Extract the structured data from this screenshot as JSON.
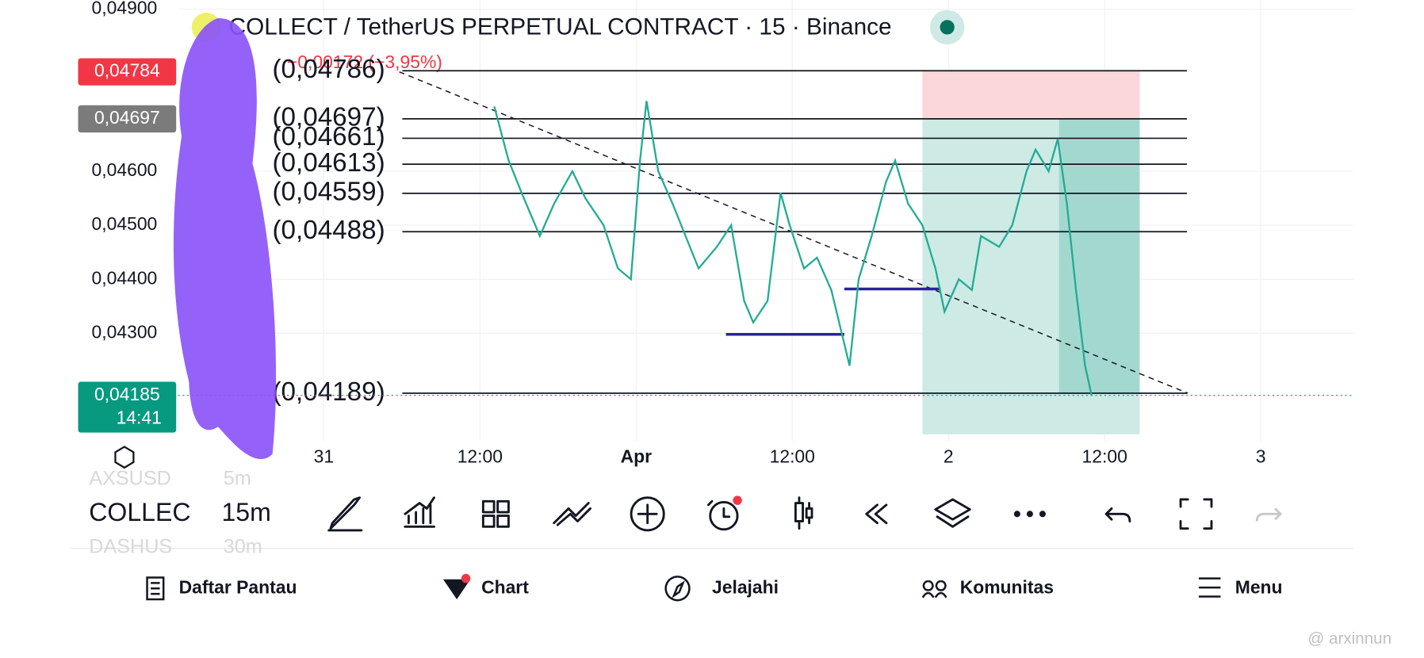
{
  "chart_data": {
    "type": "line",
    "title": "COLLECT / TetherUS PERPETUAL CONTRACT · 15 · Binance",
    "subtitle": "−0,00172 (−3,95%)",
    "x": [
      13.1,
      14.2,
      15.2,
      16.6,
      17.7,
      19.1,
      20.1,
      21.5,
      22.6,
      23.6,
      24.3,
      24.8,
      25.7,
      26.8,
      27.8,
      28.8,
      30.2,
      31.3,
      32.3,
      33.0,
      34.1,
      35.1,
      35.8,
      36.9,
      37.9,
      39.0,
      40.0,
      40.4,
      41.1,
      42.1,
      43.2,
      43.9,
      44.9,
      46.0,
      47.0,
      47.7,
      48.8,
      49.8,
      50.5,
      51.9,
      52.9,
      54.0,
      54.7,
      55.7,
      56.4,
      57.1,
      57.8,
      58.5,
      59.0
    ],
    "values": [
      0.0472,
      0.0462,
      0.0456,
      0.0448,
      0.0454,
      0.046,
      0.0455,
      0.045,
      0.0442,
      0.044,
      0.0462,
      0.0473,
      0.046,
      0.0454,
      0.0448,
      0.0442,
      0.0446,
      0.045,
      0.0436,
      0.0432,
      0.0436,
      0.0456,
      0.045,
      0.0442,
      0.0444,
      0.0438,
      0.0428,
      0.0424,
      0.044,
      0.0448,
      0.0458,
      0.0462,
      0.0454,
      0.045,
      0.0442,
      0.0434,
      0.044,
      0.0438,
      0.0448,
      0.0446,
      0.045,
      0.046,
      0.0464,
      0.046,
      0.0466,
      0.0454,
      0.0438,
      0.0424,
      0.04185
    ],
    "color": "#22ab94",
    "xlim": [
      -19.3,
      79.1
    ],
    "ylim": [
      0.0411,
      0.04917
    ],
    "xticks": [
      {
        "value": 0,
        "label": "31"
      },
      {
        "value": 12,
        "label": "12:00"
      },
      {
        "value": 24,
        "label": "Apr"
      },
      {
        "value": 36,
        "label": "12:00"
      },
      {
        "value": 48,
        "label": "2"
      },
      {
        "value": 60,
        "label": "12:00"
      },
      {
        "value": 72,
        "label": "3"
      }
    ],
    "yticks": [
      {
        "value": 0.049,
        "label": "0,04900"
      },
      {
        "value": 0.046,
        "label": "0,04600"
      },
      {
        "value": 0.045,
        "label": "0,04500"
      },
      {
        "value": 0.044,
        "label": "0,04400"
      },
      {
        "value": 0.043,
        "label": "0,04300"
      }
    ],
    "grid": true,
    "levels": [
      {
        "value": 0.04786,
        "label": "(0,04786)"
      },
      {
        "value": 0.04697,
        "label": "(0,04697)"
      },
      {
        "value": 0.04661,
        "label": "(0,04661)"
      },
      {
        "value": 0.04613,
        "label": "(0,04613)"
      },
      {
        "value": 0.04559,
        "label": "(0,04559)"
      },
      {
        "value": 0.04488,
        "label": "(0,04488)"
      },
      {
        "value": 0.04189,
        "label": "(0,04189)"
      }
    ],
    "trendline": {
      "x0": 5.8,
      "y0": 0.04784,
      "x1": 66.4,
      "y1": 0.04189
    },
    "segments": [
      {
        "x0": 30.9,
        "x1": 40.0,
        "y": 0.04298
      },
      {
        "x0": 40.0,
        "x1": 47.4,
        "y": 0.04382
      }
    ],
    "position": {
      "x0": 46.0,
      "x1": 62.7,
      "stop": 0.04786,
      "entry": 0.04697,
      "target": 0.04113,
      "x_now": 56.5,
      "now": 0.04189
    },
    "price_badges": [
      {
        "value": 0.04784,
        "label": "0,04784",
        "color": "#f23645"
      },
      {
        "value": 0.04697,
        "label": "0,04697",
        "color": "#7b7b7b"
      },
      {
        "value": 0.04185,
        "label": "0,04185",
        "color": "#089981",
        "time": "14:41"
      }
    ]
  },
  "toolbar": {
    "symbol": "COLLEC",
    "interval": "15m",
    "faded": [
      "AXSUSD",
      "5m",
      "DASHUS",
      "30m"
    ]
  },
  "nav": [
    "Daftar Pantau",
    "Chart",
    "Jelajahi",
    "Komunitas",
    "Menu"
  ],
  "watermark": "@ arxinnun"
}
